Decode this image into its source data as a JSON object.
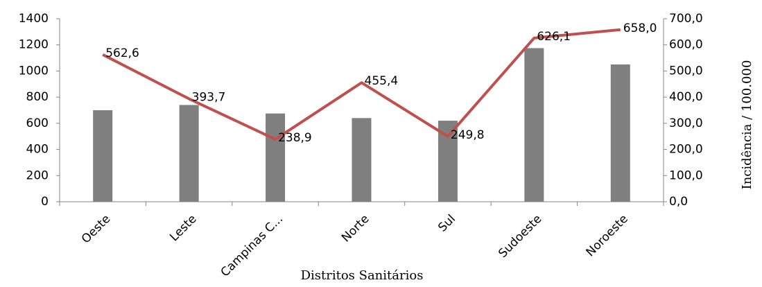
{
  "chart_data": {
    "type": "bar_line",
    "x_axis_label": "Distritos Sanitários",
    "y2_axis_label": "Incidência / 100.000",
    "categories": [
      "Oeste",
      "Leste",
      "Campinas C...",
      "Norte",
      "Sul",
      "Sudoeste",
      "Noroeste"
    ],
    "series": [
      {
        "type": "bar",
        "color": "#7f7f7f",
        "values": [
          700,
          740,
          675,
          640,
          620,
          1175,
          1050
        ]
      },
      {
        "type": "line",
        "color": "#c0504d",
        "axis": "y2",
        "values": [
          562.6,
          393.7,
          238.9,
          455.4,
          249.8,
          626.1,
          658.0
        ],
        "value_labels": [
          "562,6",
          "393,7",
          "238,9",
          "455,4",
          "249,8",
          "626,1",
          "658,0"
        ]
      }
    ],
    "ylim": [
      0,
      1400
    ],
    "yticks": [
      0,
      200,
      400,
      600,
      800,
      1000,
      1200,
      1400
    ],
    "y2lim": [
      0,
      700
    ],
    "y2ticks": [
      {
        "value": 0,
        "label": "0,0"
      },
      {
        "value": 100,
        "label": "100,0"
      },
      {
        "value": 200,
        "label": "200,0"
      },
      {
        "value": 300,
        "label": "300,0"
      },
      {
        "value": 400,
        "label": "400,0"
      },
      {
        "value": 500,
        "label": "500,0"
      },
      {
        "value": 600,
        "label": "600,0"
      },
      {
        "value": 700,
        "label": "700,0"
      }
    ]
  }
}
